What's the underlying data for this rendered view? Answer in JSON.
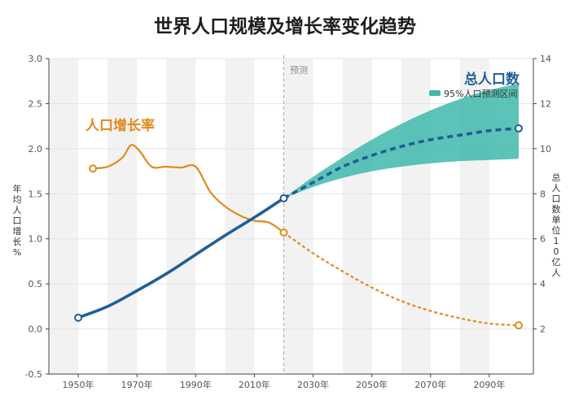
{
  "chart_data": {
    "type": "line",
    "title": "世界人口规模及增长率变化趋势",
    "x_ticks": [
      "1950年",
      "1970年",
      "1990年",
      "2010年",
      "2030年",
      "2050年",
      "2070年",
      "2090年"
    ],
    "x_tick_values": [
      1950,
      1970,
      1990,
      2010,
      2030,
      2050,
      2070,
      2090
    ],
    "xlim": [
      1940,
      2105
    ],
    "ylim_left": [
      -0.5,
      3.0
    ],
    "ylim_right": [
      0,
      14
    ],
    "y_left_ticks": [
      "-0.5",
      "0.0",
      "0.5",
      "1.0",
      "1.5",
      "2.0",
      "2.5",
      "3.0"
    ],
    "y_right_ticks": [
      "2",
      "4",
      "6",
      "8",
      "10",
      "12",
      "14"
    ],
    "ylabel_left": "年均人口增长%",
    "ylabel_right": "总人口数单位10亿人",
    "forecast_label": "预测",
    "forecast_start": 2020,
    "legend": {
      "band_label": "95%人口预测区间",
      "band_color": "#3fb8ac"
    },
    "series": [
      {
        "name": "人口增长率",
        "axis": "left",
        "color": "#e08a1e",
        "historical": {
          "x": [
            1955,
            1960,
            1965,
            1968,
            1971,
            1975,
            1980,
            1985,
            1990,
            1995,
            2000,
            2005,
            2010,
            2015,
            2020
          ],
          "y": [
            1.78,
            1.8,
            1.9,
            2.04,
            1.97,
            1.8,
            1.8,
            1.79,
            1.8,
            1.52,
            1.36,
            1.26,
            1.2,
            1.18,
            1.07
          ]
        },
        "projection": {
          "x": [
            2020,
            2030,
            2040,
            2050,
            2060,
            2070,
            2080,
            2090,
            2100
          ],
          "y": [
            1.07,
            0.84,
            0.64,
            0.46,
            0.31,
            0.2,
            0.12,
            0.06,
            0.04
          ]
        }
      },
      {
        "name": "总人口数",
        "axis": "right",
        "color": "#1f5f97",
        "historical": {
          "x": [
            1950,
            1960,
            1970,
            1980,
            1990,
            2000,
            2010,
            2020
          ],
          "y": [
            2.5,
            3.0,
            3.7,
            4.45,
            5.3,
            6.15,
            6.95,
            7.8
          ]
        },
        "projection": {
          "x": [
            2020,
            2030,
            2040,
            2050,
            2060,
            2070,
            2080,
            2090,
            2100
          ],
          "y": [
            7.8,
            8.5,
            9.2,
            9.7,
            10.1,
            10.4,
            10.6,
            10.8,
            10.9
          ]
        },
        "band": {
          "x": [
            2020,
            2030,
            2040,
            2050,
            2060,
            2070,
            2080,
            2090,
            2100
          ],
          "lower": [
            7.8,
            8.3,
            8.7,
            9.0,
            9.2,
            9.35,
            9.45,
            9.5,
            9.55
          ],
          "upper": [
            7.8,
            8.75,
            9.6,
            10.4,
            11.1,
            11.7,
            12.2,
            12.6,
            12.9
          ]
        }
      }
    ]
  }
}
